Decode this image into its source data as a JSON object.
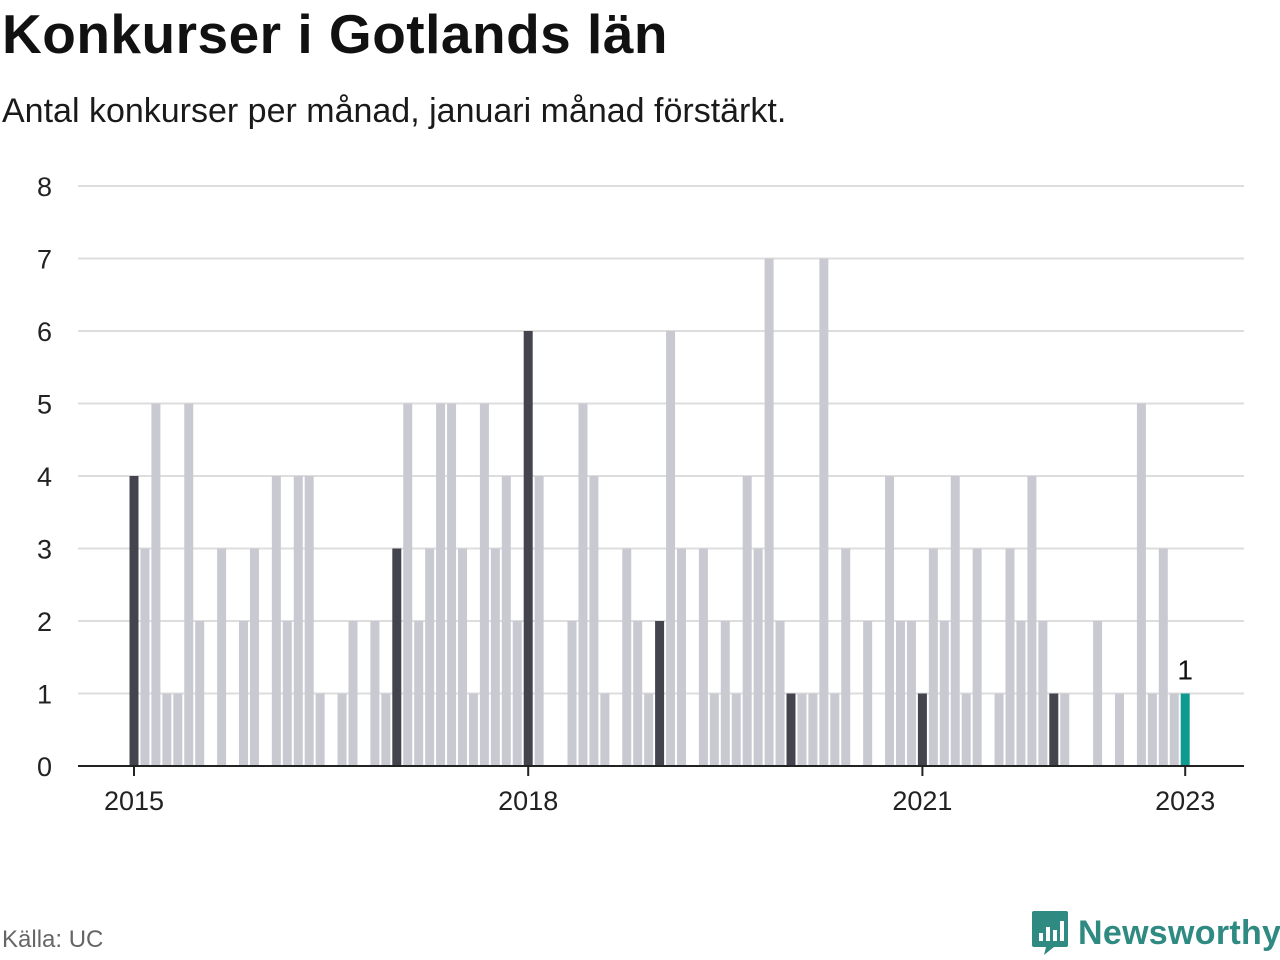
{
  "header": {
    "title": "Konkurser i Gotlands län",
    "subtitle": "Antal konkurser per månad, januari månad förstärkt."
  },
  "footer": {
    "source": "Källa: UC",
    "brand": "Newsworthy"
  },
  "colors": {
    "january": "#44444f",
    "other": "#c9c9d1",
    "latest": "#0e9a8e",
    "grid": "#dddddd",
    "axis": "#222222",
    "brand": "#2f8a82"
  },
  "chart_data": {
    "type": "bar",
    "title": "Konkurser i Gotlands län",
    "subtitle": "Antal konkurser per månad, januari månad förstärkt.",
    "xlabel": "",
    "ylabel": "",
    "ylim": [
      0,
      8
    ],
    "yticks": [
      0,
      1,
      2,
      3,
      4,
      5,
      6,
      7,
      8
    ],
    "start": "2015-01",
    "xtick_labels": [
      {
        "label": "2015",
        "index": 0
      },
      {
        "label": "2018",
        "index": 36
      },
      {
        "label": "2021",
        "index": 72
      },
      {
        "label": "2023",
        "index": 96
      }
    ],
    "highlight": "January of each year darker; latest month (2023-01) in teal",
    "last_value_label": "1",
    "values": [
      4,
      3,
      5,
      1,
      1,
      5,
      2,
      0,
      3,
      0,
      2,
      3,
      0,
      4,
      2,
      4,
      4,
      1,
      0,
      1,
      2,
      0,
      2,
      1,
      3,
      5,
      2,
      3,
      5,
      5,
      3,
      1,
      5,
      3,
      4,
      2,
      6,
      4,
      0,
      0,
      2,
      5,
      4,
      1,
      0,
      3,
      2,
      1,
      2,
      6,
      3,
      0,
      3,
      1,
      2,
      1,
      4,
      3,
      7,
      2,
      1,
      1,
      1,
      7,
      1,
      3,
      0,
      2,
      0,
      4,
      2,
      2,
      1,
      3,
      2,
      4,
      1,
      3,
      0,
      1,
      3,
      2,
      4,
      2,
      1,
      1,
      0,
      0,
      2,
      0,
      1,
      0,
      5,
      1,
      3,
      1,
      1
    ]
  }
}
